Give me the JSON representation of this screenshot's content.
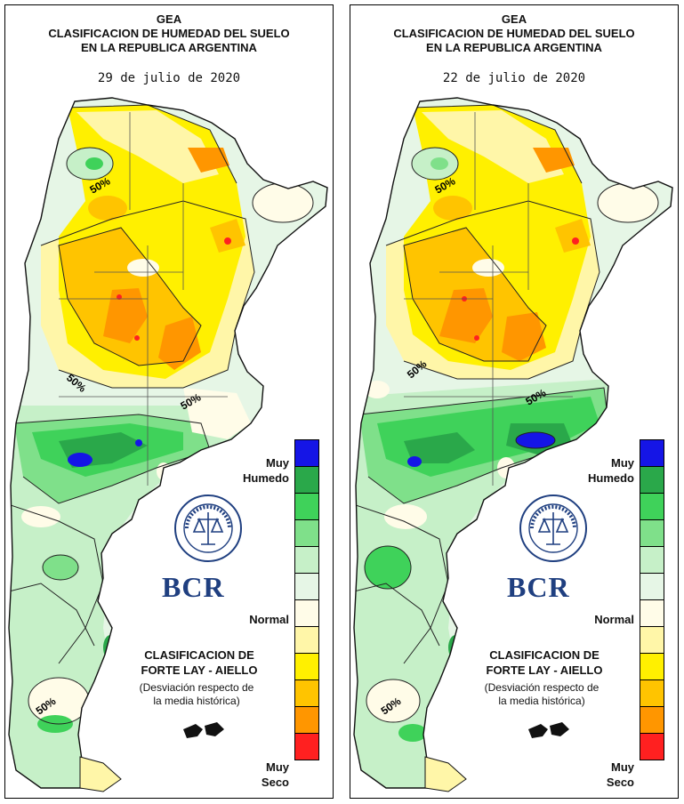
{
  "colors": {
    "muy_humedo": "#1515e6",
    "humedo_3": "#2aa84a",
    "humedo_2": "#3fd25a",
    "humedo_1": "#7fe08a",
    "humedo_0": "#c6f0c8",
    "normal_hum": "#e6f6e6",
    "normal": "#fffce8",
    "seco_1": "#fff6a8",
    "seco_2": "#fff000",
    "seco_3": "#ffc400",
    "seco_4": "#ff9600",
    "muy_seco": "#ff2020"
  },
  "panels": [
    {
      "title_1": "GEA",
      "title_2": "CLASIFICACION DE HUMEDAD DEL SUELO",
      "title_3": "EN LA REPUBLICA ARGENTINA",
      "date": "29 de julio de 2020",
      "map_labels": [
        "50%",
        "50%",
        "50%",
        "50%"
      ],
      "legend": {
        "top_1": "Muy",
        "top_2": "Humedo",
        "middle": "Normal",
        "bottom_1": "Muy",
        "bottom_2": "Seco"
      },
      "logo": {
        "icon": "bolsa-comercio-rosario-seal",
        "text": "BCR"
      },
      "classification_1": "CLASIFICACION DE",
      "classification_2": "FORTE LAY - AIELLO",
      "note_1": "(Desviación respecto de",
      "note_2": "la media histórica)"
    },
    {
      "title_1": "GEA",
      "title_2": "CLASIFICACION DE HUMEDAD DEL SUELO",
      "title_3": "EN LA REPUBLICA ARGENTINA",
      "date": "22 de julio de 2020",
      "map_labels": [
        "50%",
        "50%",
        "50%",
        "50%"
      ],
      "legend": {
        "top_1": "Muy",
        "top_2": "Humedo",
        "middle": "Normal",
        "bottom_1": "Muy",
        "bottom_2": "Seco"
      },
      "logo": {
        "icon": "bolsa-comercio-rosario-seal",
        "text": "BCR"
      },
      "classification_1": "CLASIFICACION DE",
      "classification_2": "FORTE LAY - AIELLO",
      "note_1": "(Desviación respecto de",
      "note_2": "la media histórica)"
    }
  ]
}
